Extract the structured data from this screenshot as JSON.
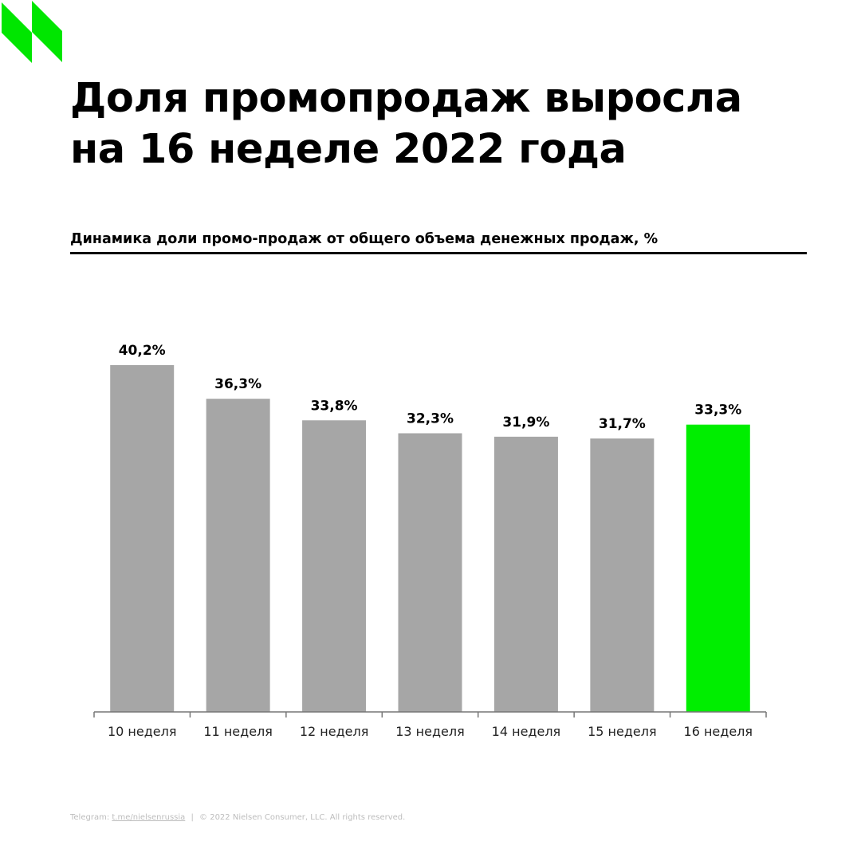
{
  "title_line1": "Доля промопродаж выросла",
  "title_line2": "на 16 неделе 2022 года",
  "subtitle": "Динамика доли промо-продаж от общего объема денежных продаж, %",
  "footer": {
    "telegram_label": "Telegram:",
    "telegram_link": "t.me/nielsenrussia",
    "separator": "|",
    "copyright": "© 2022 Nielsen Consumer, LLC. All rights reserved."
  },
  "colors": {
    "bar": "#a6a6a6",
    "highlight": "#00ee00",
    "logo": "#00e600"
  },
  "chart_data": {
    "type": "bar",
    "title": "Динамика доли промо-продаж от общего объема денежных продаж, %",
    "categories": [
      "10 неделя",
      "11 неделя",
      "12 неделя",
      "13 неделя",
      "14 неделя",
      "15 неделя",
      "16 неделя"
    ],
    "values": [
      40.2,
      36.3,
      33.8,
      32.3,
      31.9,
      31.7,
      33.3
    ],
    "labels": [
      "40,2%",
      "36,3%",
      "33,8%",
      "32,3%",
      "31,9%",
      "31,7%",
      "33,3%"
    ],
    "highlight_index": 6,
    "xlabel": "",
    "ylabel": "",
    "ylim": [
      0,
      40.2
    ],
    "grid": false
  }
}
